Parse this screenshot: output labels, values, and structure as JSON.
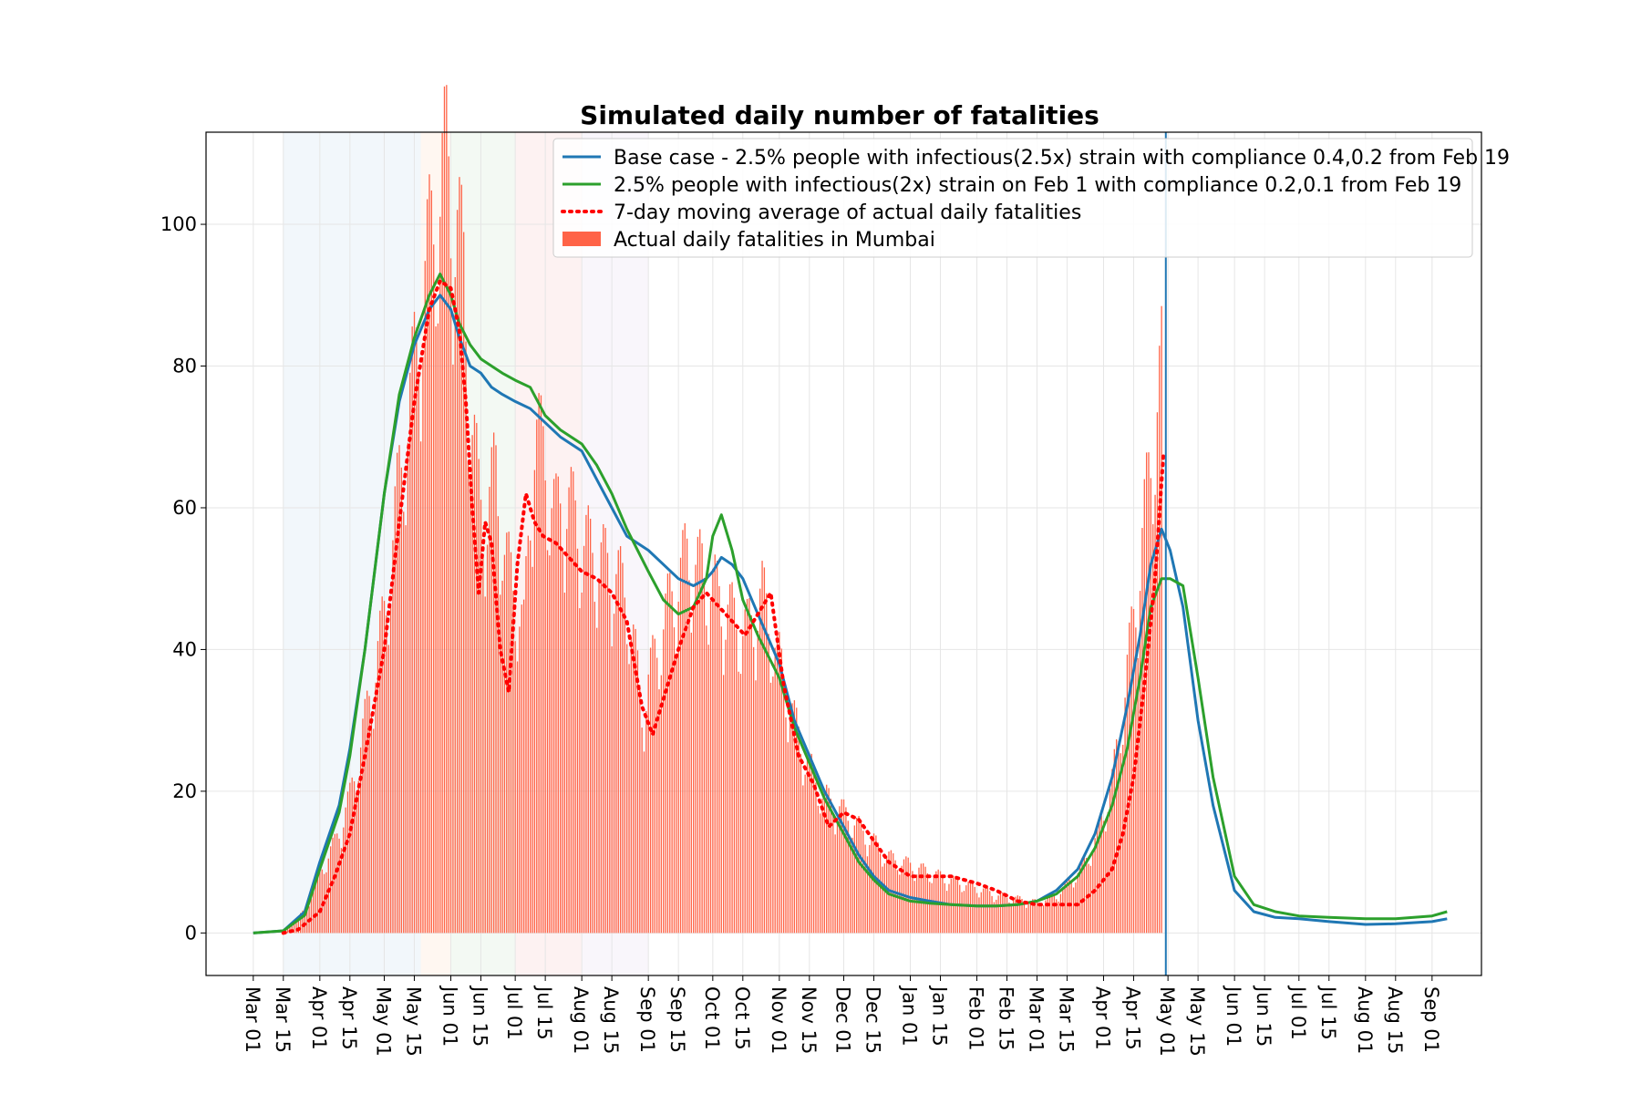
{
  "chart_data": {
    "type": "line",
    "title": "Simulated daily number of fatalities",
    "xlabel": "",
    "ylabel": "",
    "ylim": [
      -6,
      113
    ],
    "yticks": [
      0,
      20,
      40,
      60,
      80,
      100
    ],
    "x_tick_labels": [
      "Mar 01",
      "Mar 15",
      "Apr 01",
      "Apr 15",
      "May 01",
      "May 15",
      "Jun 01",
      "Jun 15",
      "Jul 01",
      "Jul 15",
      "Aug 01",
      "Aug 15",
      "Sep 01",
      "Sep 15",
      "Oct 01",
      "Oct 15",
      "Nov 01",
      "Nov 15",
      "Dec 01",
      "Dec 15",
      "Jan 01",
      "Jan 15",
      "Feb 01",
      "Feb 15",
      "Mar 01",
      "Mar 15",
      "Apr 01",
      "Apr 15",
      "May 01",
      "May 15",
      "Jun 01",
      "Jun 15",
      "Jul 01",
      "Jul 15",
      "Aug 01",
      "Aug 15",
      "Sep 01"
    ],
    "x_tick_dates": [
      "2020-03-01",
      "2020-03-15",
      "2020-04-01",
      "2020-04-15",
      "2020-05-01",
      "2020-05-15",
      "2020-06-01",
      "2020-06-15",
      "2020-07-01",
      "2020-07-15",
      "2020-08-01",
      "2020-08-15",
      "2020-09-01",
      "2020-09-15",
      "2020-10-01",
      "2020-10-15",
      "2020-11-01",
      "2020-11-15",
      "2020-12-01",
      "2020-12-15",
      "2021-01-01",
      "2021-01-15",
      "2021-02-01",
      "2021-02-15",
      "2021-03-01",
      "2021-03-15",
      "2021-04-01",
      "2021-04-15",
      "2021-05-01",
      "2021-05-15",
      "2021-06-01",
      "2021-06-15",
      "2021-07-01",
      "2021-07-15",
      "2021-08-01",
      "2021-08-15",
      "2021-09-01"
    ],
    "x_range": [
      "2020-02-08",
      "2021-09-24"
    ],
    "grid": true,
    "legend_placement": "top-right",
    "vline": "2021-04-30",
    "shaded_periods": [
      {
        "start": "2020-03-15",
        "end": "2020-05-18",
        "color": "#1f77b4"
      },
      {
        "start": "2020-05-18",
        "end": "2020-06-01",
        "color": "#ff7f0e"
      },
      {
        "start": "2020-06-01",
        "end": "2020-07-01",
        "color": "#2ca02c"
      },
      {
        "start": "2020-07-01",
        "end": "2020-08-01",
        "color": "#d62728"
      },
      {
        "start": "2020-08-01",
        "end": "2020-09-01",
        "color": "#9467bd"
      }
    ],
    "series": [
      {
        "name": "Base case - 2.5% people with infectious(2.5x) strain with compliance 0.4,0.2 from Feb 19",
        "kind": "line",
        "color": "#1f77b4",
        "x": [
          "2020-03-01",
          "2020-03-15",
          "2020-03-25",
          "2020-04-01",
          "2020-04-10",
          "2020-04-15",
          "2020-04-22",
          "2020-05-01",
          "2020-05-08",
          "2020-05-15",
          "2020-05-22",
          "2020-05-27",
          "2020-06-01",
          "2020-06-05",
          "2020-06-10",
          "2020-06-15",
          "2020-06-20",
          "2020-06-25",
          "2020-07-01",
          "2020-07-08",
          "2020-07-15",
          "2020-07-22",
          "2020-08-01",
          "2020-08-08",
          "2020-08-15",
          "2020-08-22",
          "2020-09-01",
          "2020-09-08",
          "2020-09-15",
          "2020-09-22",
          "2020-09-28",
          "2020-10-01",
          "2020-10-05",
          "2020-10-10",
          "2020-10-15",
          "2020-10-22",
          "2020-11-01",
          "2020-11-08",
          "2020-11-15",
          "2020-11-22",
          "2020-12-01",
          "2020-12-08",
          "2020-12-15",
          "2020-12-22",
          "2021-01-01",
          "2021-01-10",
          "2021-01-20",
          "2021-02-01",
          "2021-02-10",
          "2021-02-20",
          "2021-03-01",
          "2021-03-10",
          "2021-03-20",
          "2021-03-28",
          "2021-04-05",
          "2021-04-12",
          "2021-04-18",
          "2021-04-23",
          "2021-04-28",
          "2021-05-02",
          "2021-05-08",
          "2021-05-15",
          "2021-05-22",
          "2021-06-01",
          "2021-06-10",
          "2021-06-20",
          "2021-07-01",
          "2021-07-15",
          "2021-08-01",
          "2021-08-15",
          "2021-09-01",
          "2021-09-08"
        ],
        "y": [
          0,
          0.3,
          3,
          10,
          18,
          26,
          40,
          62,
          75,
          83,
          88,
          90,
          88,
          84,
          80,
          79,
          77,
          76,
          75,
          74,
          72,
          70,
          68,
          64,
          60,
          56,
          54,
          52,
          50,
          49,
          50,
          51,
          53,
          52,
          50,
          45,
          38,
          30,
          25,
          20,
          15,
          11,
          8,
          6,
          5,
          4.5,
          4,
          3.8,
          3.8,
          4,
          4.5,
          6,
          9,
          14,
          22,
          32,
          42,
          52,
          57,
          54,
          46,
          30,
          18,
          6,
          3,
          2.2,
          2,
          1.6,
          1.2,
          1.3,
          1.6,
          2
        ]
      },
      {
        "name": "2.5% people with infectious(2x) strain on Feb 1 with compliance 0.2,0.1 from Feb 19",
        "kind": "line",
        "color": "#2ca02c",
        "x": [
          "2020-03-01",
          "2020-03-15",
          "2020-03-25",
          "2020-04-01",
          "2020-04-10",
          "2020-04-15",
          "2020-04-22",
          "2020-05-01",
          "2020-05-08",
          "2020-05-15",
          "2020-05-22",
          "2020-05-27",
          "2020-06-01",
          "2020-06-05",
          "2020-06-10",
          "2020-06-15",
          "2020-06-20",
          "2020-06-25",
          "2020-07-01",
          "2020-07-08",
          "2020-07-15",
          "2020-07-22",
          "2020-08-01",
          "2020-08-08",
          "2020-08-15",
          "2020-08-22",
          "2020-09-01",
          "2020-09-08",
          "2020-09-15",
          "2020-09-22",
          "2020-09-28",
          "2020-10-01",
          "2020-10-05",
          "2020-10-10",
          "2020-10-15",
          "2020-10-22",
          "2020-11-01",
          "2020-11-08",
          "2020-11-15",
          "2020-11-22",
          "2020-12-01",
          "2020-12-08",
          "2020-12-15",
          "2020-12-22",
          "2021-01-01",
          "2021-01-10",
          "2021-01-20",
          "2021-02-01",
          "2021-02-10",
          "2021-02-20",
          "2021-03-01",
          "2021-03-10",
          "2021-03-20",
          "2021-03-28",
          "2021-04-05",
          "2021-04-12",
          "2021-04-18",
          "2021-04-23",
          "2021-04-28",
          "2021-05-02",
          "2021-05-08",
          "2021-05-15",
          "2021-05-22",
          "2021-06-01",
          "2021-06-10",
          "2021-06-20",
          "2021-07-01",
          "2021-07-15",
          "2021-08-01",
          "2021-08-15",
          "2021-09-01",
          "2021-09-08"
        ],
        "y": [
          0,
          0.3,
          2.5,
          9,
          17,
          25,
          40,
          62,
          76,
          84,
          90,
          93,
          90,
          86,
          83,
          81,
          80,
          79,
          78,
          77,
          73,
          71,
          69,
          66,
          62,
          57,
          51,
          47,
          45,
          46,
          50,
          56,
          59,
          54,
          47,
          42,
          36,
          29,
          24,
          19,
          14,
          10,
          7.5,
          5.5,
          4.5,
          4.2,
          4,
          3.8,
          3.8,
          4,
          4.5,
          5.5,
          8,
          12,
          18,
          26,
          36,
          46,
          50,
          50,
          49,
          36,
          22,
          8,
          4,
          3,
          2.4,
          2.2,
          2,
          2,
          2.4,
          3
        ]
      },
      {
        "name": "7-day moving average of actual daily fatalities",
        "kind": "dotted",
        "color": "#ff0000",
        "x": [
          "2020-03-15",
          "2020-03-22",
          "2020-04-01",
          "2020-04-08",
          "2020-04-15",
          "2020-04-22",
          "2020-05-01",
          "2020-05-08",
          "2020-05-15",
          "2020-05-22",
          "2020-05-27",
          "2020-06-01",
          "2020-06-05",
          "2020-06-08",
          "2020-06-11",
          "2020-06-14",
          "2020-06-17",
          "2020-06-20",
          "2020-06-24",
          "2020-06-28",
          "2020-07-02",
          "2020-07-06",
          "2020-07-10",
          "2020-07-14",
          "2020-07-20",
          "2020-07-26",
          "2020-08-01",
          "2020-08-08",
          "2020-08-15",
          "2020-08-22",
          "2020-08-29",
          "2020-09-03",
          "2020-09-08",
          "2020-09-15",
          "2020-09-22",
          "2020-09-28",
          "2020-10-04",
          "2020-10-10",
          "2020-10-16",
          "2020-10-22",
          "2020-10-28",
          "2020-11-03",
          "2020-11-10",
          "2020-11-17",
          "2020-11-24",
          "2020-12-01",
          "2020-12-08",
          "2020-12-15",
          "2020-12-22",
          "2021-01-01",
          "2021-01-10",
          "2021-01-20",
          "2021-02-01",
          "2021-02-10",
          "2021-02-20",
          "2021-03-01",
          "2021-03-10",
          "2021-03-20",
          "2021-03-28",
          "2021-04-05",
          "2021-04-10",
          "2021-04-15",
          "2021-04-20",
          "2021-04-25",
          "2021-04-29"
        ],
        "y": [
          0,
          0.5,
          3,
          8,
          14,
          25,
          40,
          58,
          75,
          88,
          92,
          91,
          85,
          75,
          60,
          48,
          58,
          55,
          40,
          34,
          52,
          62,
          58,
          56,
          55,
          53,
          51,
          50,
          48,
          44,
          32,
          28,
          33,
          40,
          46,
          48,
          46,
          44,
          42,
          45,
          48,
          35,
          25,
          21,
          15,
          17,
          16,
          13,
          10,
          8,
          8,
          8,
          7,
          6,
          4.5,
          4,
          4,
          4,
          6,
          9,
          14,
          22,
          35,
          50,
          68
        ]
      },
      {
        "name": "Actual daily fatalities in Mumbai",
        "kind": "bar",
        "color": "#ff6347",
        "x": [
          "2020-03-15",
          "2020-03-25",
          "2020-04-01",
          "2020-04-08",
          "2020-04-15",
          "2020-04-22",
          "2020-05-01",
          "2020-05-08",
          "2020-05-15",
          "2020-05-20",
          "2020-05-25",
          "2020-05-30",
          "2020-06-03",
          "2020-06-07",
          "2020-06-10",
          "2020-06-14",
          "2020-06-18",
          "2020-06-22",
          "2020-06-26",
          "2020-07-01",
          "2020-07-05",
          "2020-07-10",
          "2020-07-15",
          "2020-07-20",
          "2020-07-25",
          "2020-08-01",
          "2020-08-08",
          "2020-08-15",
          "2020-08-22",
          "2020-08-29",
          "2020-09-05",
          "2020-09-12",
          "2020-09-19",
          "2020-09-26",
          "2020-10-03",
          "2020-10-10",
          "2020-10-17",
          "2020-10-24",
          "2020-11-01",
          "2020-11-08",
          "2020-11-15",
          "2020-11-22",
          "2020-12-01",
          "2020-12-08",
          "2020-12-15",
          "2020-12-22",
          "2021-01-01",
          "2021-01-10",
          "2021-01-20",
          "2021-02-01",
          "2021-02-10",
          "2021-02-20",
          "2021-03-01",
          "2021-03-10",
          "2021-03-20",
          "2021-03-28",
          "2021-04-05",
          "2021-04-10",
          "2021-04-15",
          "2021-04-20",
          "2021-04-25",
          "2021-04-28"
        ],
        "y": [
          0,
          3,
          8,
          12,
          18,
          28,
          42,
          60,
          75,
          88,
          95,
          103,
          95,
          88,
          70,
          58,
          55,
          62,
          50,
          45,
          40,
          68,
          62,
          55,
          58,
          52,
          50,
          48,
          45,
          30,
          38,
          45,
          50,
          48,
          45,
          42,
          40,
          45,
          36,
          28,
          22,
          18,
          16,
          14,
          12,
          10,
          9,
          8,
          7,
          6,
          5,
          4.5,
          4,
          5,
          8,
          12,
          20,
          30,
          42,
          55,
          68,
          75
        ]
      }
    ]
  }
}
